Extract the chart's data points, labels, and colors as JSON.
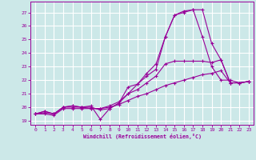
{
  "xlabel": "Windchill (Refroidissement éolien,°C)",
  "background_color": "#cce8e8",
  "grid_color": "#ffffff",
  "line_color": "#990099",
  "xlim": [
    -0.5,
    23.5
  ],
  "ylim": [
    18.7,
    27.8
  ],
  "yticks": [
    19,
    20,
    21,
    22,
    23,
    24,
    25,
    26,
    27
  ],
  "xticks": [
    0,
    1,
    2,
    3,
    4,
    5,
    6,
    7,
    8,
    9,
    10,
    11,
    12,
    13,
    14,
    15,
    16,
    17,
    18,
    19,
    20,
    21,
    22,
    23
  ],
  "series": [
    [
      19.5,
      19.7,
      19.5,
      20.0,
      20.1,
      20.0,
      20.1,
      19.1,
      19.9,
      20.3,
      21.5,
      21.7,
      22.5,
      23.2,
      25.2,
      26.8,
      27.1,
      27.2,
      27.2,
      24.7,
      23.5,
      21.8,
      21.8,
      21.9
    ],
    [
      19.5,
      19.7,
      19.5,
      20.0,
      20.1,
      20.0,
      20.0,
      19.8,
      19.9,
      20.3,
      21.0,
      21.7,
      22.3,
      22.8,
      25.2,
      26.8,
      27.0,
      27.2,
      25.2,
      23.0,
      22.0,
      22.0,
      21.8,
      21.9
    ],
    [
      19.5,
      19.6,
      19.5,
      20.0,
      20.0,
      20.0,
      19.9,
      19.9,
      20.1,
      20.4,
      21.0,
      21.3,
      21.8,
      22.3,
      23.2,
      23.4,
      23.4,
      23.4,
      23.4,
      23.3,
      23.5,
      21.8,
      21.8,
      21.9
    ],
    [
      19.5,
      19.5,
      19.4,
      19.9,
      19.9,
      19.9,
      19.9,
      19.9,
      20.0,
      20.2,
      20.5,
      20.8,
      21.0,
      21.3,
      21.6,
      21.8,
      22.0,
      22.2,
      22.4,
      22.5,
      22.7,
      21.8,
      21.8,
      21.9
    ]
  ]
}
